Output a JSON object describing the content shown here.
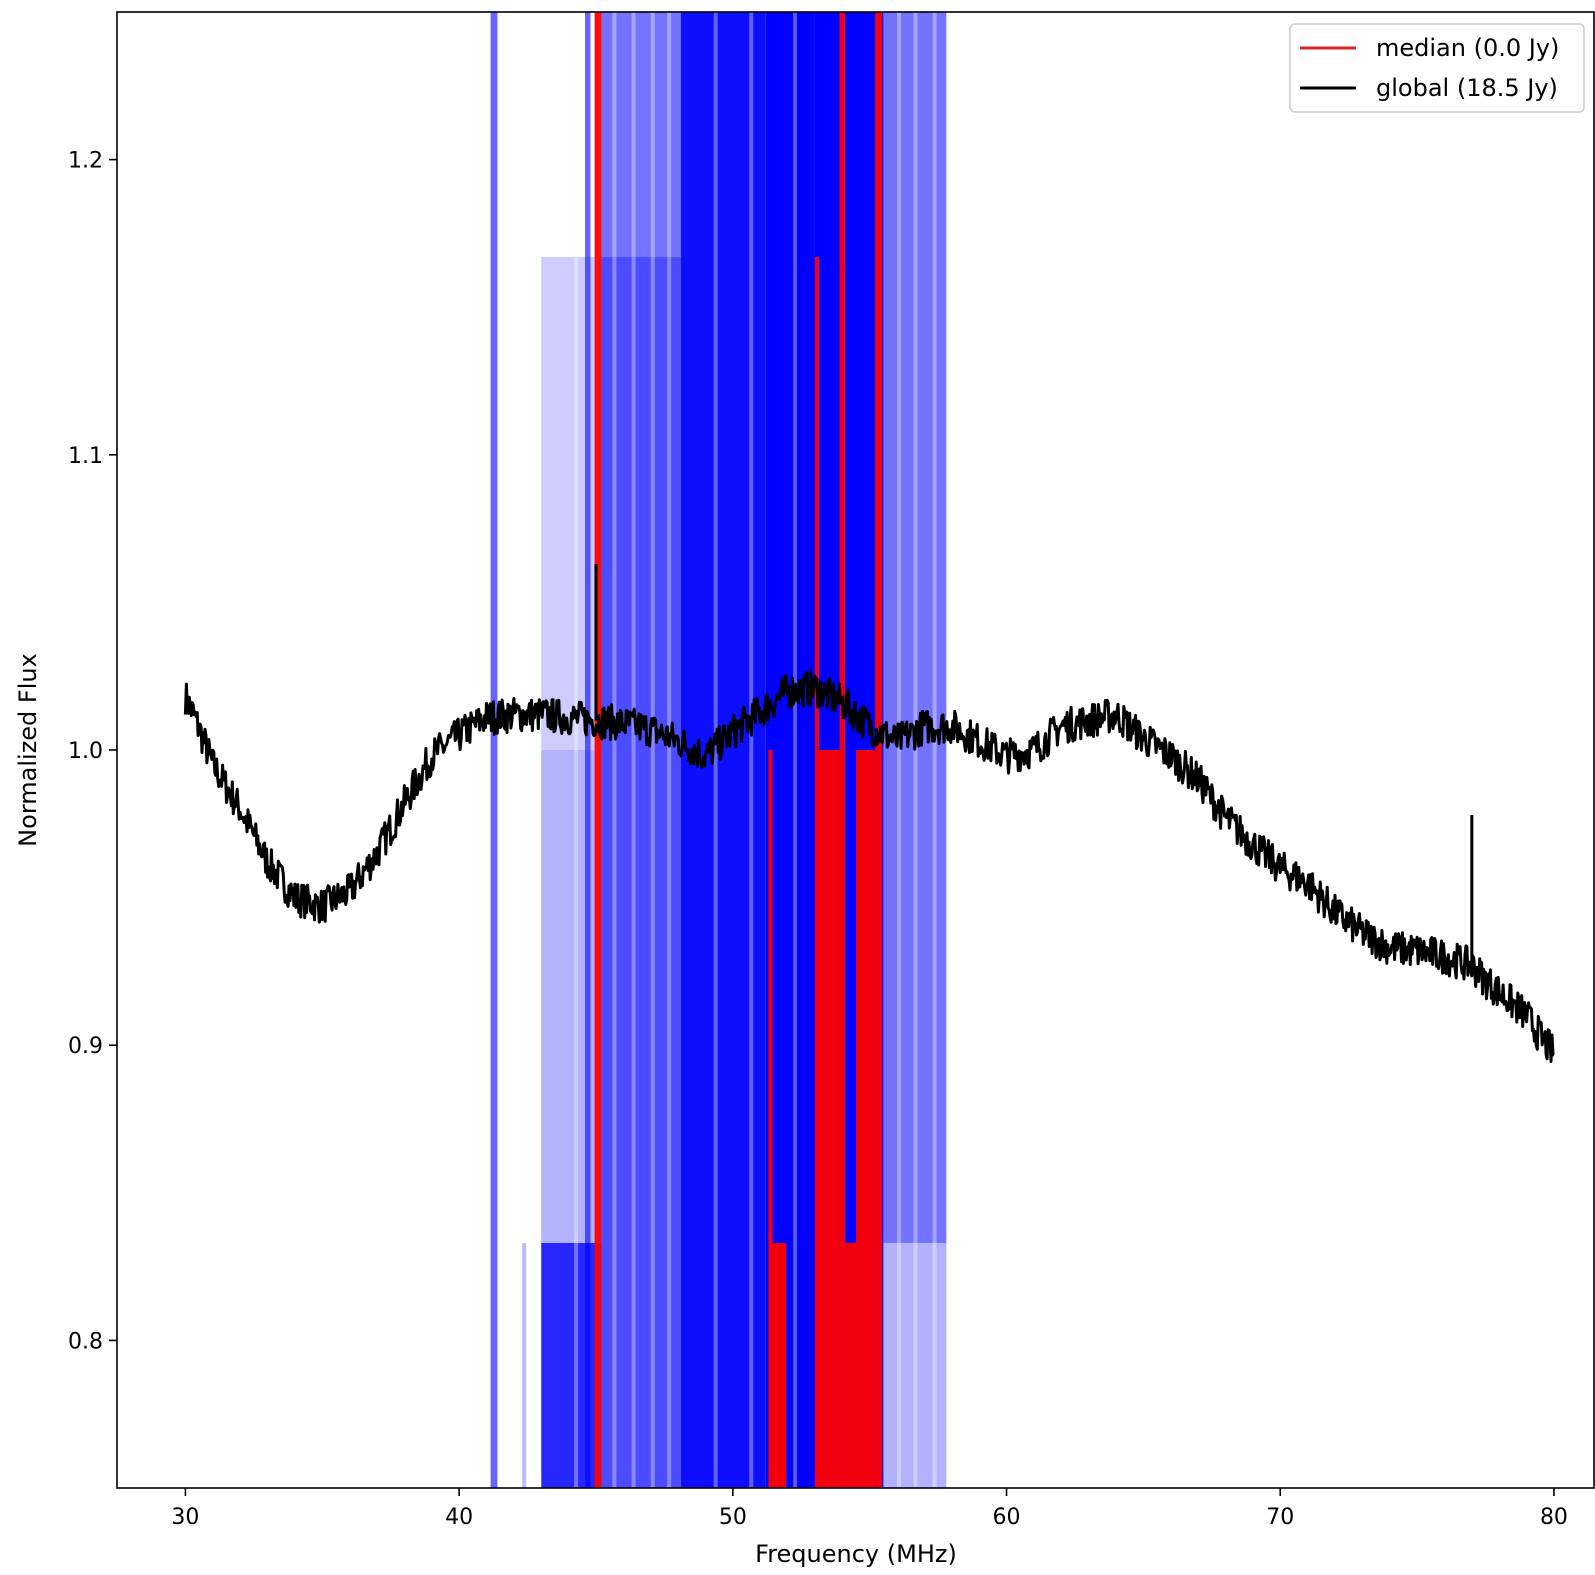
{
  "chart_data": {
    "type": "line",
    "xlabel": "Frequency (MHz)",
    "ylabel": "Normalized Flux",
    "xlim": [
      27.5,
      81.5
    ],
    "ylim": [
      0.75,
      1.25
    ],
    "x_ticks": [
      30,
      40,
      50,
      60,
      70,
      80
    ],
    "y_ticks": [
      0.8,
      0.9,
      1.0,
      1.1,
      1.2
    ],
    "x_tick_labels": [
      "30",
      "40",
      "50",
      "60",
      "70",
      "80"
    ],
    "y_tick_labels": [
      "0.8",
      "0.9",
      "1.0",
      "1.1",
      "1.2"
    ],
    "grid": false,
    "legend": {
      "placement": "upper-right",
      "entries": [
        {
          "label": "median (0.0 Jy)",
          "color": "#d62728"
        },
        {
          "label": "global (18.5 Jy)",
          "color": "#000000"
        }
      ]
    },
    "series": [
      {
        "name": "global (18.5 Jy)",
        "color": "#000000",
        "x": [
          30,
          30.3,
          31,
          32,
          33,
          34,
          35,
          36,
          37,
          38,
          39,
          40,
          41,
          42,
          43,
          44,
          45,
          46,
          47,
          48,
          49,
          50,
          51,
          52,
          53,
          54,
          55,
          56,
          57,
          58,
          59,
          60,
          61,
          62,
          63,
          64,
          65,
          66,
          67,
          68,
          69,
          70,
          71,
          72,
          73,
          74,
          75,
          76,
          77,
          77.5,
          78,
          79,
          79.5,
          80
        ],
        "y": [
          1.018,
          1.012,
          0.995,
          0.98,
          0.962,
          0.95,
          0.947,
          0.952,
          0.965,
          0.982,
          0.998,
          1.005,
          1.011,
          1.012,
          1.012,
          1.011,
          1.01,
          1.009,
          1.007,
          1.003,
          0.998,
          1.006,
          1.013,
          1.02,
          1.021,
          1.016,
          1.008,
          1.003,
          1.008,
          1.008,
          1.003,
          0.998,
          1.0,
          1.008,
          1.01,
          1.012,
          1.004,
          0.998,
          0.99,
          0.977,
          0.968,
          0.96,
          0.955,
          0.945,
          0.938,
          0.933,
          0.932,
          0.93,
          0.927,
          0.922,
          0.918,
          0.91,
          0.903,
          0.897
        ]
      }
    ],
    "global_spikes": [
      {
        "x": 45.0,
        "y_top": 1.063
      },
      {
        "x": 77.0,
        "y_top": 0.978
      }
    ],
    "rfi_flags": [
      {
        "x0": 41.15,
        "x1": 41.4,
        "y_bottom": 0.75,
        "y_top": 1.25,
        "alpha": 0.6
      },
      {
        "x0": 42.3,
        "x1": 42.45,
        "y_bottom": 0.75,
        "y_top": 0.833,
        "alpha": 0.25
      },
      {
        "x0": 43.0,
        "x1": 45.2,
        "y_bottom": 0.75,
        "y_top": 0.833,
        "alpha": 0.85
      },
      {
        "x0": 43.0,
        "x1": 45.2,
        "y_bottom": 0.833,
        "y_top": 1.0,
        "alpha": 0.3
      },
      {
        "x0": 43.0,
        "x1": 45.2,
        "y_bottom": 1.0,
        "y_top": 1.167,
        "alpha": 0.2
      },
      {
        "x0": 44.6,
        "x1": 44.8,
        "y_bottom": 0.75,
        "y_top": 1.25,
        "alpha": 0.6
      },
      {
        "x0": 45.2,
        "x1": 48.1,
        "y_bottom": 0.75,
        "y_top": 1.25,
        "alpha": 0.55
      },
      {
        "x0": 45.2,
        "x1": 48.1,
        "y_bottom": 0.75,
        "y_top": 1.167,
        "alpha": 0.35
      },
      {
        "x0": 48.1,
        "x1": 51.2,
        "y_bottom": 0.75,
        "y_top": 1.25,
        "alpha": 0.95
      },
      {
        "x0": 51.2,
        "x1": 53.0,
        "y_bottom": 0.75,
        "y_top": 1.25,
        "alpha": 1.0
      },
      {
        "x0": 53.0,
        "x1": 55.5,
        "y_bottom": 0.75,
        "y_top": 1.25,
        "alpha": 1.0
      },
      {
        "x0": 55.5,
        "x1": 57.8,
        "y_bottom": 0.833,
        "y_top": 1.25,
        "alpha": 0.55
      },
      {
        "x0": 55.5,
        "x1": 57.8,
        "y_bottom": 0.75,
        "y_top": 0.833,
        "alpha": 0.3
      }
    ],
    "median_segments": [
      {
        "x0": 44.95,
        "x1": 45.2,
        "y_bottom": 0.75,
        "y_top": 1.25
      },
      {
        "x0": 51.3,
        "x1": 51.45,
        "y_bottom": 0.75,
        "y_top": 1.0
      },
      {
        "x0": 51.45,
        "x1": 51.95,
        "y_bottom": 0.75,
        "y_top": 0.833
      },
      {
        "x0": 53.0,
        "x1": 53.15,
        "y_bottom": 0.75,
        "y_top": 1.167
      },
      {
        "x0": 53.15,
        "x1": 53.9,
        "y_bottom": 0.75,
        "y_top": 1.0
      },
      {
        "x0": 53.9,
        "x1": 54.1,
        "y_bottom": 0.75,
        "y_top": 1.25
      },
      {
        "x0": 54.1,
        "x1": 54.5,
        "y_bottom": 0.75,
        "y_top": 0.833
      },
      {
        "x0": 54.5,
        "x1": 55.2,
        "y_bottom": 0.75,
        "y_top": 1.0
      },
      {
        "x0": 55.2,
        "x1": 55.45,
        "y_bottom": 0.75,
        "y_top": 1.25
      }
    ]
  }
}
